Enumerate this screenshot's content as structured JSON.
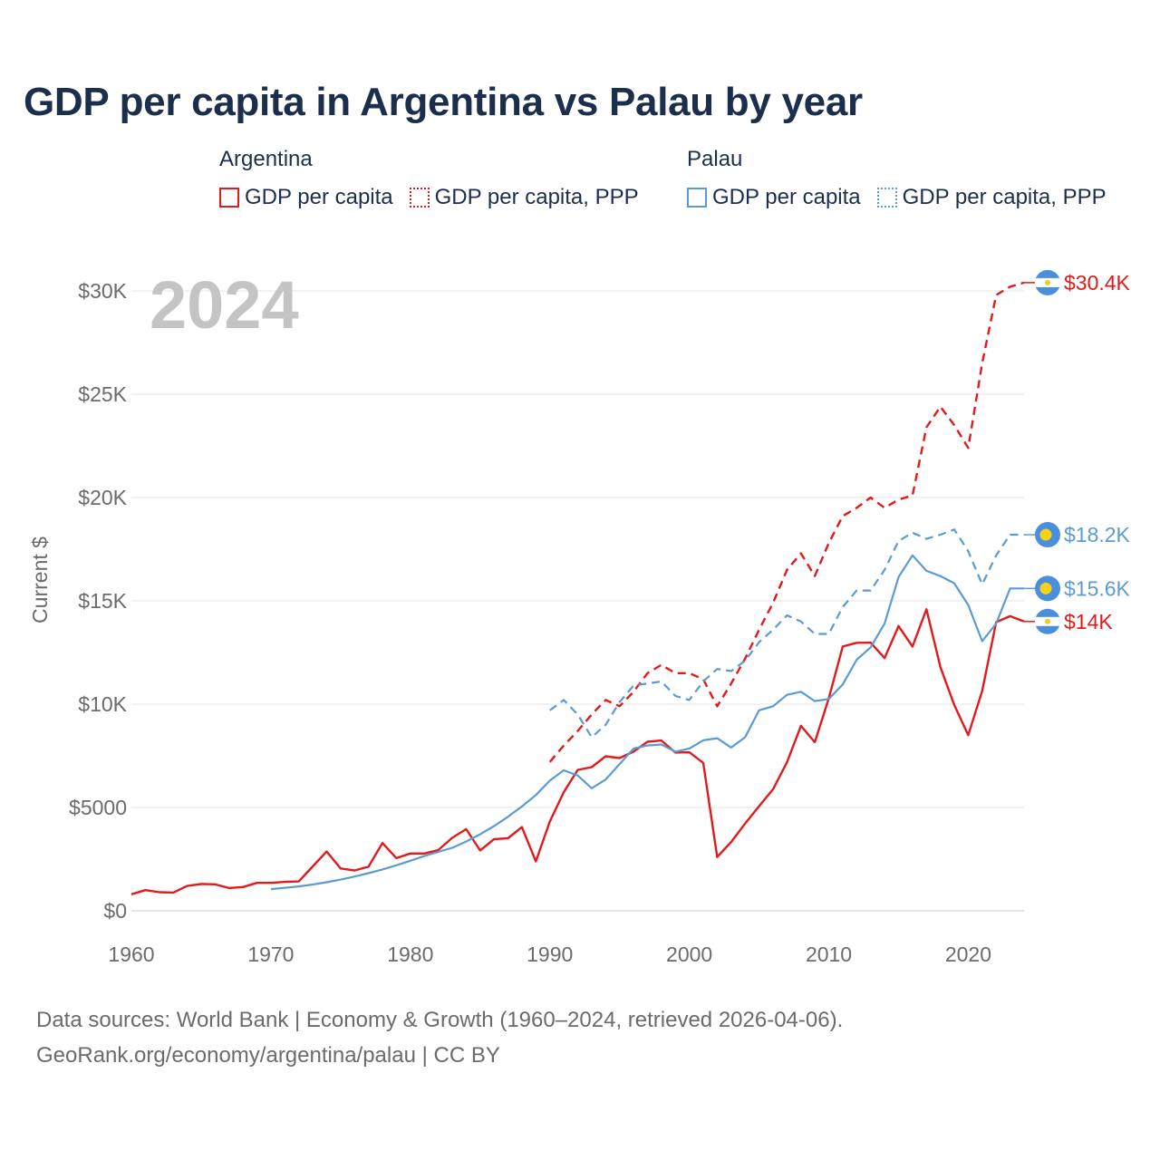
{
  "chart_data": {
    "type": "line",
    "title": "GDP per capita in Argentina vs Palau by year",
    "year_label": "2024",
    "ylabel": "Current $",
    "xlim": [
      1960,
      2024
    ],
    "ylim": [
      0,
      31000
    ],
    "x_ticks": [
      1960,
      1970,
      1980,
      1990,
      2000,
      2010,
      2020
    ],
    "y_ticks": [
      0,
      5000,
      10000,
      15000,
      20000,
      25000,
      30000
    ],
    "y_tick_labels": [
      "$0",
      "$5000",
      "$10K",
      "$15K",
      "$20K",
      "$25K",
      "$30K"
    ],
    "legend": [
      {
        "group": "Argentina",
        "items": [
          "GDP per capita",
          "GDP per capita, PPP"
        ]
      },
      {
        "group": "Palau",
        "items": [
          "GDP per capita",
          "GDP per capita, PPP"
        ]
      }
    ],
    "series": [
      {
        "name": "Argentina GDP per capita",
        "country": "Argentina",
        "style": "solid",
        "color": "#e31a1c",
        "x": [
          1960,
          1961,
          1962,
          1963,
          1964,
          1965,
          1966,
          1967,
          1968,
          1969,
          1970,
          1971,
          1972,
          1973,
          1974,
          1975,
          1976,
          1977,
          1978,
          1979,
          1980,
          1981,
          1982,
          1983,
          1984,
          1985,
          1986,
          1987,
          1988,
          1989,
          1990,
          1991,
          1992,
          1993,
          1994,
          1995,
          1996,
          1997,
          1998,
          1999,
          2000,
          2001,
          2002,
          2003,
          2004,
          2005,
          2006,
          2007,
          2008,
          2009,
          2010,
          2011,
          2012,
          2013,
          2014,
          2015,
          2016,
          2017,
          2018,
          2019,
          2020,
          2021,
          2022,
          2023,
          2024
        ],
        "values": [
          800,
          1000,
          900,
          880,
          1200,
          1300,
          1280,
          1100,
          1150,
          1350,
          1350,
          1400,
          1420,
          2150,
          2870,
          2050,
          1950,
          2130,
          3280,
          2550,
          2770,
          2770,
          2940,
          3530,
          3950,
          2920,
          3470,
          3510,
          4050,
          2390,
          4320,
          5740,
          6820,
          6950,
          7480,
          7390,
          7700,
          8180,
          8240,
          7660,
          7670,
          7160,
          2600,
          3330,
          4220,
          5060,
          5880,
          7190,
          8950,
          8160,
          10280,
          12790,
          12970,
          12980,
          12230,
          13780,
          12790,
          14590,
          11790,
          9960,
          8500,
          10640,
          13970,
          14260,
          14000
        ],
        "end_label": "$14K"
      },
      {
        "name": "Argentina GDP per capita, PPP",
        "country": "Argentina",
        "style": "dashed",
        "color": "#e31a1c",
        "x": [
          1990,
          1991,
          1992,
          1993,
          1994,
          1995,
          1996,
          1997,
          1998,
          1999,
          2000,
          2001,
          2002,
          2003,
          2004,
          2005,
          2006,
          2007,
          2008,
          2009,
          2010,
          2011,
          2012,
          2013,
          2014,
          2015,
          2016,
          2017,
          2018,
          2019,
          2020,
          2021,
          2022,
          2023,
          2024
        ],
        "values": [
          7200,
          8000,
          8700,
          9500,
          10200,
          9900,
          10600,
          11500,
          11900,
          11500,
          11500,
          11200,
          9900,
          11000,
          12200,
          13600,
          14900,
          16500,
          17300,
          16200,
          17800,
          19100,
          19500,
          20000,
          19500,
          19900,
          20100,
          23400,
          24400,
          23500,
          22400,
          26500,
          29800,
          30200,
          30400
        ],
        "end_label": "$30.4K"
      },
      {
        "name": "Palau GDP per capita",
        "country": "Palau",
        "style": "solid",
        "color": "#5b9bd5",
        "x": [
          1970,
          1971,
          1972,
          1973,
          1974,
          1975,
          1976,
          1977,
          1978,
          1979,
          1980,
          1981,
          1982,
          1983,
          1984,
          1985,
          1986,
          1987,
          1988,
          1989,
          1990,
          1991,
          1992,
          1993,
          1994,
          1995,
          1996,
          1997,
          1998,
          1999,
          2000,
          2001,
          2002,
          2003,
          2004,
          2005,
          2006,
          2007,
          2008,
          2009,
          2010,
          2011,
          2012,
          2013,
          2014,
          2015,
          2016,
          2017,
          2018,
          2019,
          2020,
          2021,
          2022,
          2023,
          2024
        ],
        "values": [
          1050,
          1110,
          1180,
          1270,
          1380,
          1510,
          1660,
          1820,
          2000,
          2200,
          2420,
          2650,
          2850,
          3050,
          3350,
          3700,
          4100,
          4550,
          5050,
          5600,
          6300,
          6800,
          6550,
          5930,
          6350,
          7100,
          7850,
          8000,
          8050,
          7700,
          7850,
          8250,
          8350,
          7900,
          8400,
          9700,
          9900,
          10450,
          10600,
          10150,
          10250,
          10950,
          12150,
          12750,
          13900,
          16150,
          17200,
          16450,
          16200,
          15850,
          14800,
          13050,
          13900,
          15600,
          15600
        ],
        "end_label": "$15.6K"
      },
      {
        "name": "Palau GDP per capita, PPP",
        "country": "Palau",
        "style": "dashed",
        "color": "#5b9bd5",
        "x": [
          1990,
          1991,
          1992,
          1993,
          1994,
          1995,
          1996,
          1997,
          1998,
          1999,
          2000,
          2001,
          2002,
          2003,
          2004,
          2005,
          2006,
          2007,
          2008,
          2009,
          2010,
          2011,
          2012,
          2013,
          2014,
          2015,
          2016,
          2017,
          2018,
          2019,
          2020,
          2021,
          2022,
          2023,
          2024
        ],
        "values": [
          9700,
          10200,
          9500,
          8400,
          9000,
          10100,
          10900,
          11000,
          11100,
          10400,
          10200,
          11100,
          11700,
          11600,
          12100,
          13000,
          13600,
          14300,
          14000,
          13400,
          13400,
          14700,
          15500,
          15500,
          16500,
          17900,
          18300,
          18000,
          18200,
          18450,
          17400,
          15800,
          17200,
          18200,
          18200
        ],
        "end_label": "$18.2K"
      }
    ]
  },
  "footer": {
    "line1": "Data sources: World Bank | Economy & Growth (1960–2024, retrieved 2026-04-06).",
    "line2": "GeoRank.org/economy/argentina/palau | CC BY"
  }
}
